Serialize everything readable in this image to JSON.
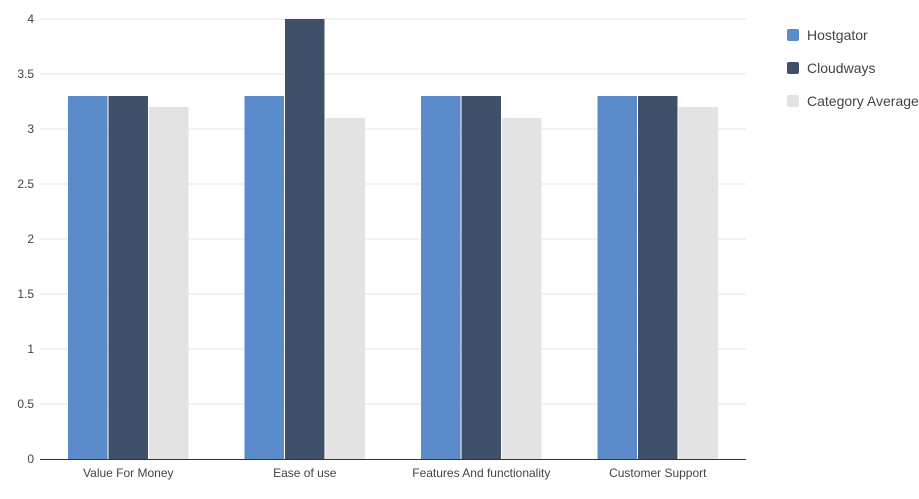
{
  "chart_data": {
    "type": "bar",
    "categories": [
      "Value For Money",
      "Ease of use",
      "Features And functionality",
      "Customer Support"
    ],
    "series": [
      {
        "name": "Hostgator",
        "color": "#5b8bcb",
        "values": [
          3.3,
          3.3,
          3.3,
          3.3
        ]
      },
      {
        "name": "Cloudways",
        "color": "#3f5068",
        "values": [
          3.3,
          4.0,
          3.3,
          3.3
        ]
      },
      {
        "name": "Category Average",
        "color": "#e3e3e3",
        "values": [
          3.2,
          3.1,
          3.1,
          3.2
        ]
      }
    ],
    "ylim": [
      0,
      4
    ],
    "yticks": [
      0,
      0.5,
      1,
      1.5,
      2,
      2.5,
      3,
      3.5,
      4
    ],
    "ytick_labels": [
      "0",
      "0.5",
      "1",
      "1.5",
      "2",
      "2.5",
      "3",
      "3.5",
      "4"
    ],
    "grid": true,
    "legend_position": "top-right",
    "title": "",
    "xlabel": "",
    "ylabel": ""
  }
}
